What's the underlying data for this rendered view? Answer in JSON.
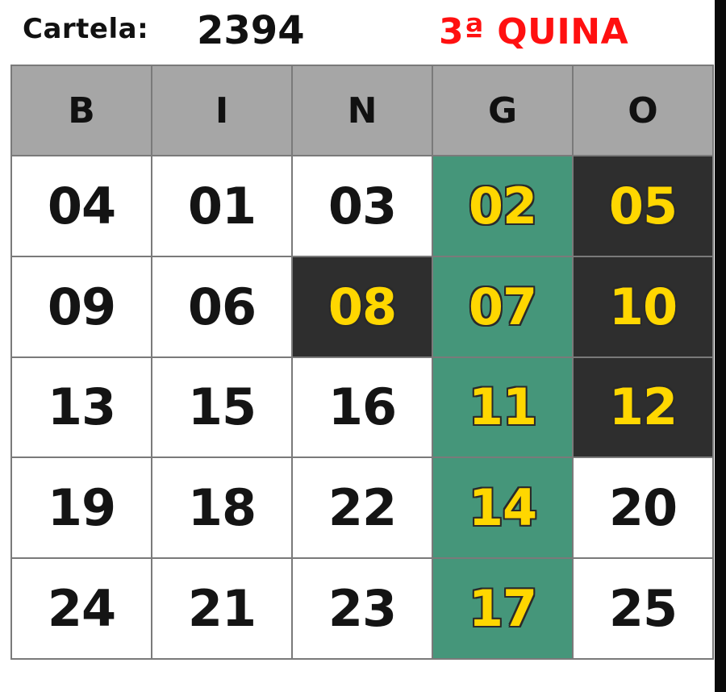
{
  "header": {
    "card_label": "Cartela:",
    "card_number": "2394",
    "round_title": "3ª QUINA"
  },
  "colors": {
    "round_title": "#ff1010",
    "header_row": "#a6a6a6",
    "winning_column": "#45967a",
    "marked_cell": "#2e2e2e",
    "drawn_number": "#ffd700",
    "plain_number": "#141414"
  },
  "board": {
    "columns": [
      "B",
      "I",
      "N",
      "G",
      "O"
    ],
    "rows": [
      [
        {
          "value": "04",
          "state": "plain"
        },
        {
          "value": "01",
          "state": "plain"
        },
        {
          "value": "03",
          "state": "plain"
        },
        {
          "value": "02",
          "state": "winning"
        },
        {
          "value": "05",
          "state": "marked"
        }
      ],
      [
        {
          "value": "09",
          "state": "plain"
        },
        {
          "value": "06",
          "state": "plain"
        },
        {
          "value": "08",
          "state": "marked"
        },
        {
          "value": "07",
          "state": "winning"
        },
        {
          "value": "10",
          "state": "marked"
        }
      ],
      [
        {
          "value": "13",
          "state": "plain"
        },
        {
          "value": "15",
          "state": "plain"
        },
        {
          "value": "16",
          "state": "plain"
        },
        {
          "value": "11",
          "state": "winning"
        },
        {
          "value": "12",
          "state": "marked"
        }
      ],
      [
        {
          "value": "19",
          "state": "plain"
        },
        {
          "value": "18",
          "state": "plain"
        },
        {
          "value": "22",
          "state": "plain"
        },
        {
          "value": "14",
          "state": "winning"
        },
        {
          "value": "20",
          "state": "plain"
        }
      ],
      [
        {
          "value": "24",
          "state": "plain"
        },
        {
          "value": "21",
          "state": "plain"
        },
        {
          "value": "23",
          "state": "plain"
        },
        {
          "value": "17",
          "state": "winning"
        },
        {
          "value": "25",
          "state": "plain"
        }
      ]
    ]
  }
}
